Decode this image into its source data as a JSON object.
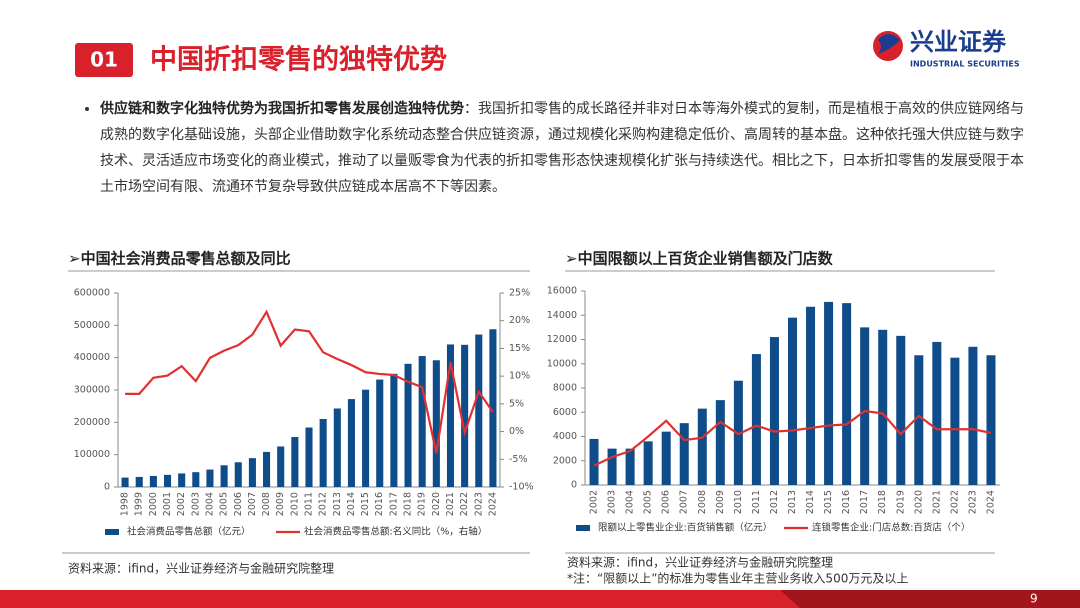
{
  "header": {
    "number": "01",
    "title": "中国折扣零售的独特优势"
  },
  "logo": {
    "name": "兴业证券",
    "english": "INDUSTRIAL SECURITIES"
  },
  "bullet": {
    "lead": "供应链和数字化独特优势为我国折扣零售发展创造独特优势",
    "body": "：我国折扣零售的成长路径并非对日本等海外模式的复制，而是植根于高效的供应链网络与成熟的数字化基础设施，头部企业借助数字化系统动态整合供应链资源，通过规模化采购构建稳定低价、高周转的基本盘。这种依托强大供应链与数字技术、灵活适应市场变化的商业模式，推动了以量贩零食为代表的折扣零售形态快速规模化扩张与持续迭代。相比之下，日本折扣零售的发展受限于本土市场空间有限、流通环节复杂导致供应链成本居高不下等因素。"
  },
  "chart_data": [
    {
      "type": "combo",
      "title": "➢中国社会消费品零售总额及同比",
      "categories": [
        "1998",
        "1999",
        "2000",
        "2001",
        "2002",
        "2003",
        "2004",
        "2005",
        "2006",
        "2007",
        "2008",
        "2009",
        "2010",
        "2011",
        "2012",
        "2013",
        "2014",
        "2015",
        "2016",
        "2017",
        "2018",
        "2019",
        "2020",
        "2021",
        "2022",
        "2023",
        "2024"
      ],
      "series": [
        {
          "name": "社会消费品零售总额（亿元）",
          "type": "bar",
          "color": "#0f4c8a",
          "values": [
            29153,
            31135,
            34153,
            37595,
            42027,
            45842,
            53950,
            67177,
            76410,
            89210,
            108488,
            125343,
            154554,
            183919,
            210307,
            242843,
            271896,
            300931,
            332316,
            350000,
            380987,
            405000,
            391981,
            440823,
            439733,
            471495,
            487895
          ]
        },
        {
          "name": "社会消费品零售总额:名义同比（%，右轴）",
          "type": "line",
          "axis": "y2",
          "color": "#e03030",
          "values": [
            6.8,
            6.8,
            9.7,
            10.1,
            11.8,
            9.1,
            13.3,
            14.6,
            15.6,
            17.5,
            21.6,
            15.5,
            18.4,
            18.1,
            14.3,
            13.1,
            12.0,
            10.7,
            10.4,
            10.2,
            9.0,
            8.0,
            -3.9,
            12.5,
            -0.2,
            7.2,
            3.5
          ]
        }
      ],
      "ylim": [
        0,
        600000
      ],
      "yticks": [
        0,
        100000,
        200000,
        300000,
        400000,
        500000,
        600000
      ],
      "y2lim": [
        -10,
        25
      ],
      "y2ticks": [
        {
          "value": -10,
          "label": "-10%"
        },
        {
          "value": -5,
          "label": "-5%"
        },
        {
          "value": 0,
          "label": "0%"
        },
        {
          "value": 5,
          "label": "5%"
        },
        {
          "value": 10,
          "label": "10%"
        },
        {
          "value": 15,
          "label": "15%"
        },
        {
          "value": 20,
          "label": "20%"
        },
        {
          "value": 25,
          "label": "25%"
        }
      ],
      "grid": false
    },
    {
      "type": "combo",
      "title": "➢中国限额以上百货企业销售额及门店数",
      "categories": [
        "2002",
        "2003",
        "2004",
        "2005",
        "2006",
        "2007",
        "2008",
        "2009",
        "2010",
        "2011",
        "2012",
        "2013",
        "2014",
        "2015",
        "2016",
        "2017",
        "2018",
        "2019",
        "2020",
        "2021",
        "2022",
        "2023",
        "2024"
      ],
      "series": [
        {
          "name": "限额以上零售业企业:百货销售额（亿元）",
          "type": "bar",
          "color": "#0f4c8a",
          "values": [
            3800,
            3000,
            3000,
            3600,
            4400,
            5100,
            6300,
            7000,
            8600,
            10800,
            12200,
            13800,
            14700,
            15100,
            15000,
            13000,
            12800,
            12300,
            10700,
            11800,
            10500,
            11400,
            10700
          ]
        },
        {
          "name": "连锁零售企业:门店总数:百货店（个）",
          "type": "line",
          "color": "#e03030",
          "values": [
            1600,
            2300,
            2800,
            4000,
            5300,
            3700,
            3900,
            5200,
            4200,
            4900,
            4400,
            4500,
            4700,
            4900,
            5000,
            6100,
            5900,
            4200,
            5700,
            4600,
            4600,
            4600,
            4300
          ]
        }
      ],
      "ylim": [
        0,
        16000
      ],
      "yticks": [
        0,
        2000,
        4000,
        6000,
        8000,
        10000,
        12000,
        14000,
        16000
      ],
      "grid": false
    }
  ],
  "sources": [
    "资料来源：ifind，兴业证券经济与金融研究院整理",
    "资料来源：ifind，兴业证券经济与金融研究院整理"
  ],
  "note": "*注：“限额以上”的标准为零售业年主营业务收入500万元及以上",
  "page_number": "9"
}
